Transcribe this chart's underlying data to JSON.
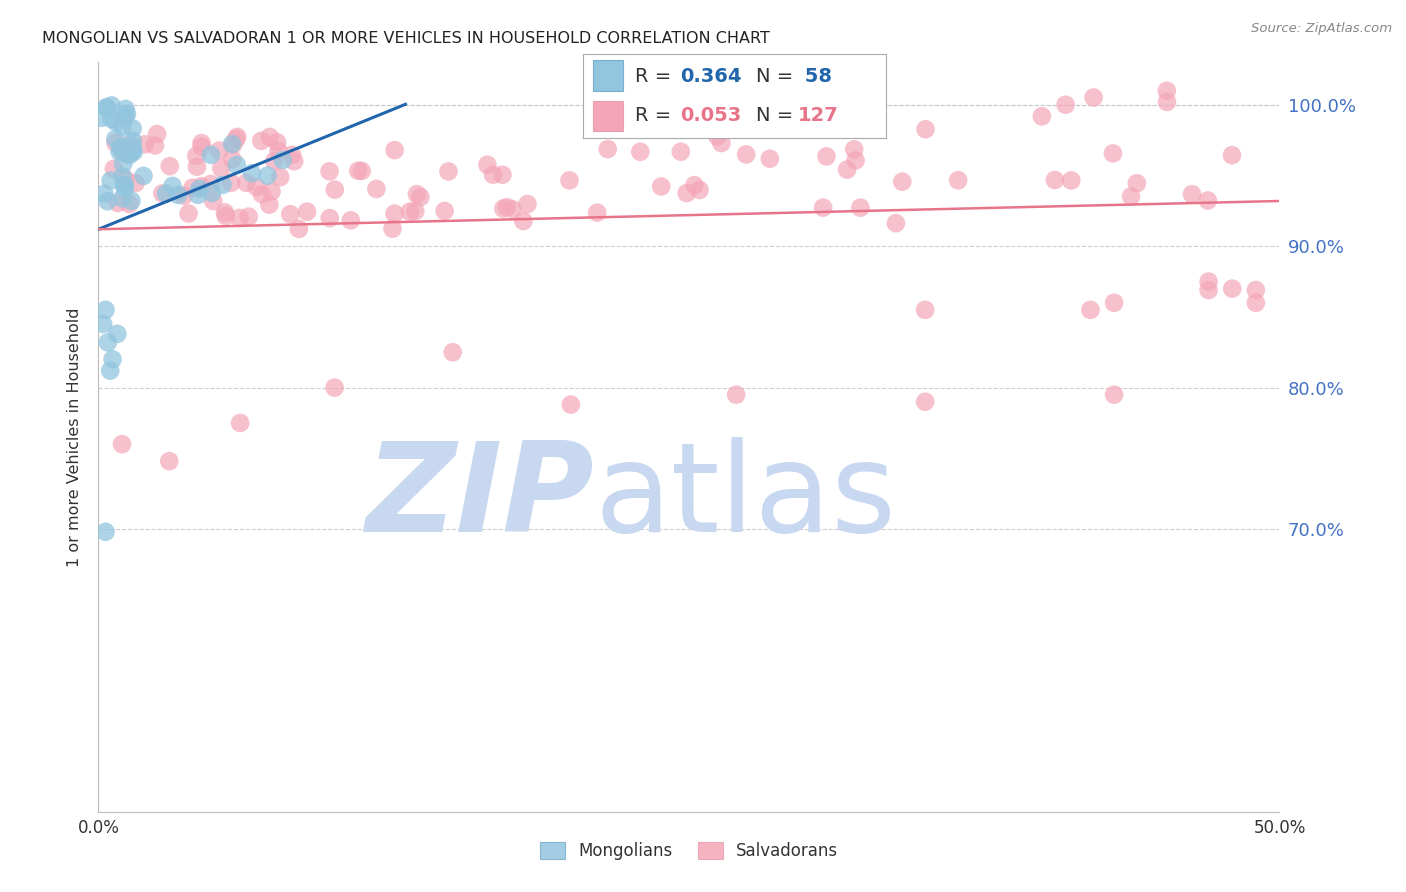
{
  "title": "MONGOLIAN VS SALVADORAN 1 OR MORE VEHICLES IN HOUSEHOLD CORRELATION CHART",
  "source_text": "Source: ZipAtlas.com",
  "ylabel": "1 or more Vehicles in Household",
  "mongolian_color": "#92c5de",
  "salvadoran_color": "#f4a6b8",
  "mongolian_line_color": "#2166ac",
  "salvadoran_line_color": "#e8748a",
  "right_axis_color": "#4472c4",
  "background_color": "#ffffff",
  "watermark_zip_color": "#c8d8f0",
  "watermark_atlas_color": "#c8d8f0",
  "xlim": [
    0.0,
    0.5
  ],
  "ylim": [
    0.5,
    1.03
  ],
  "yticks": [
    0.7,
    0.8,
    0.9,
    1.0
  ],
  "ytick_labels": [
    "70.0%",
    "80.0%",
    "90.0%",
    "100.0%"
  ],
  "grid_color": "#c8c8c8",
  "legend_border_color": "#aaaaaa",
  "legend_r_color": "#2166ac",
  "legend_n_color": "#2166ac"
}
